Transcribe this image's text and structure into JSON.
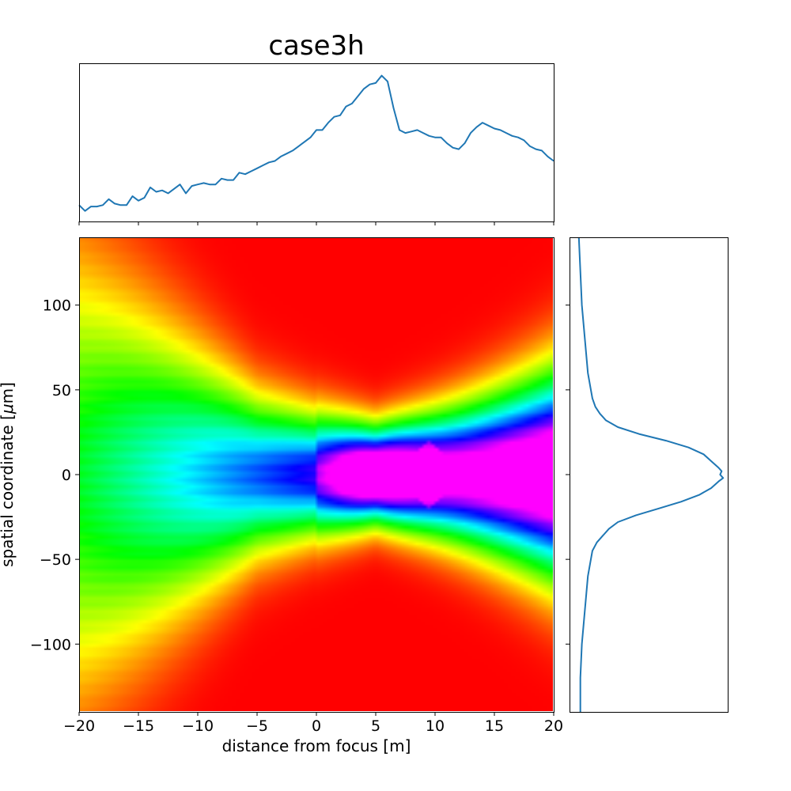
{
  "chart_data": [
    {
      "type": "line",
      "panel": "top-profile",
      "title": "case3h",
      "xlim": [
        -20,
        20
      ],
      "x": [
        -20,
        -19.5,
        -19,
        -18.5,
        -18,
        -17.5,
        -17,
        -16.5,
        -16,
        -15.5,
        -15,
        -14.5,
        -14,
        -13.5,
        -13,
        -12.5,
        -12,
        -11.5,
        -11,
        -10.5,
        -10,
        -9.5,
        -9,
        -8.5,
        -8,
        -7.5,
        -7,
        -6.5,
        -6,
        -5.5,
        -5,
        -4.5,
        -4,
        -3.5,
        -3,
        -2.5,
        -2,
        -1.5,
        -1,
        -0.5,
        0,
        0.5,
        1,
        1.5,
        2,
        2.5,
        3,
        3.5,
        4,
        4.5,
        5,
        5.5,
        6,
        6.5,
        7,
        7.5,
        8,
        8.5,
        9,
        9.5,
        10,
        10.5,
        11,
        11.5,
        12,
        12.5,
        13,
        13.5,
        14,
        14.5,
        15,
        15.5,
        16,
        16.5,
        17,
        17.5,
        18,
        18.5,
        19,
        19.5,
        20
      ],
      "values": [
        0.09,
        0.05,
        0.08,
        0.08,
        0.09,
        0.13,
        0.1,
        0.09,
        0.09,
        0.15,
        0.12,
        0.14,
        0.21,
        0.18,
        0.19,
        0.17,
        0.2,
        0.23,
        0.17,
        0.22,
        0.23,
        0.24,
        0.23,
        0.23,
        0.27,
        0.26,
        0.26,
        0.31,
        0.3,
        0.32,
        0.34,
        0.36,
        0.38,
        0.39,
        0.42,
        0.44,
        0.46,
        0.49,
        0.52,
        0.55,
        0.6,
        0.6,
        0.65,
        0.69,
        0.7,
        0.76,
        0.78,
        0.83,
        0.88,
        0.91,
        0.92,
        0.97,
        0.93,
        0.75,
        0.6,
        0.58,
        0.59,
        0.6,
        0.58,
        0.56,
        0.55,
        0.55,
        0.51,
        0.48,
        0.47,
        0.51,
        0.58,
        0.62,
        0.65,
        0.63,
        0.61,
        0.6,
        0.58,
        0.56,
        0.55,
        0.53,
        0.49,
        0.47,
        0.46,
        0.42,
        0.39
      ]
    },
    {
      "type": "heatmap",
      "panel": "main-map",
      "xlabel": "distance from focus [m]",
      "ylabel": "spatial coordinate [$\\mu$m]",
      "xlim": [
        -20,
        20
      ],
      "ylim": [
        -140,
        140
      ],
      "xticks": [
        -20,
        -15,
        -10,
        -5,
        0,
        5,
        10,
        15,
        20
      ],
      "xticklabels": [
        "−20",
        "−15",
        "−10",
        "−5",
        "0",
        "5",
        "10",
        "15",
        "20"
      ],
      "yticks": [
        100,
        50,
        0,
        -50,
        -100
      ],
      "yticklabels": [
        "100",
        "50",
        "0",
        "−50",
        "−100"
      ],
      "colormap": "gist_rainbow",
      "colors": {
        "low": "#ff0000",
        "mid": "#00ff00",
        "high": "#ff00ff"
      }
    },
    {
      "type": "line",
      "panel": "right-profile",
      "ylim": [
        -140,
        140
      ],
      "y": [
        140,
        120,
        100,
        90,
        80,
        70,
        60,
        50,
        45,
        40,
        36,
        32,
        28,
        24,
        20,
        16,
        12,
        8,
        4,
        2,
        0,
        -2,
        -4,
        -8,
        -12,
        -16,
        -20,
        -24,
        -28,
        -32,
        -36,
        -40,
        -45,
        -50,
        -60,
        -70,
        -80,
        -90,
        -100,
        -120,
        -140
      ],
      "values": [
        0.02,
        0.03,
        0.04,
        0.05,
        0.06,
        0.07,
        0.08,
        0.1,
        0.11,
        0.13,
        0.16,
        0.2,
        0.28,
        0.42,
        0.6,
        0.75,
        0.85,
        0.9,
        0.95,
        0.97,
        0.96,
        0.98,
        0.95,
        0.9,
        0.82,
        0.7,
        0.55,
        0.4,
        0.28,
        0.22,
        0.18,
        0.14,
        0.11,
        0.1,
        0.08,
        0.07,
        0.06,
        0.05,
        0.04,
        0.03,
        0.03
      ]
    }
  ]
}
